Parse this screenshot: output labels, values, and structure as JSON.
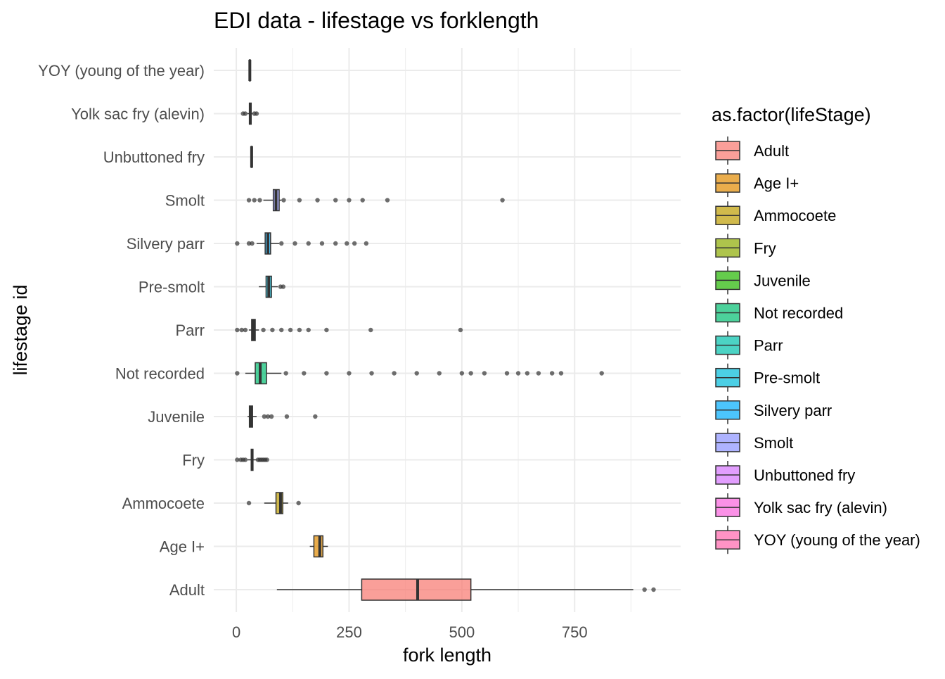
{
  "chart_data": {
    "type": "boxplot",
    "orientation": "horizontal",
    "title": "EDI data - lifestage vs forklength",
    "xlabel": "fork length",
    "ylabel": "lifestage id",
    "xlim": [
      -50,
      985
    ],
    "x_ticks": [
      0,
      250,
      500,
      750
    ],
    "grid": true,
    "legend": {
      "title": "as.factor(lifeStage)",
      "position": "right",
      "entries": [
        {
          "label": "Adult",
          "color": "#F8766D"
        },
        {
          "label": "Age I+",
          "color": "#E18A00"
        },
        {
          "label": "Ammocoete",
          "color": "#BE9C00"
        },
        {
          "label": "Fry",
          "color": "#8CAB00"
        },
        {
          "label": "Juvenile",
          "color": "#24B700"
        },
        {
          "label": "Not recorded",
          "color": "#00BE70"
        },
        {
          "label": "Parr",
          "color": "#00C1AB"
        },
        {
          "label": "Pre-smolt",
          "color": "#00BBDA"
        },
        {
          "label": "Silvery parr",
          "color": "#00ACFC"
        },
        {
          "label": "Smolt",
          "color": "#8B93FF"
        },
        {
          "label": "Unbuttoned fry",
          "color": "#D575FE"
        },
        {
          "label": "Yolk sac fry (alevin)",
          "color": "#F962DD"
        },
        {
          "label": "YOY (young of the year)",
          "color": "#FF65AC"
        }
      ]
    },
    "categories": [
      "Adult",
      "Age I+",
      "Ammocoete",
      "Fry",
      "Juvenile",
      "Not recorded",
      "Parr",
      "Pre-smolt",
      "Silvery parr",
      "Smolt",
      "Unbuttoned fry",
      "Yolk sac fry (alevin)",
      "YOY (young of the year)"
    ],
    "boxes": [
      {
        "category": "Adult",
        "whisker_low": 90,
        "q1": 278,
        "median": 402,
        "q3": 520,
        "whisker_high": 880,
        "outliers": [
          905,
          925
        ]
      },
      {
        "category": "Age I+",
        "whisker_low": 163,
        "q1": 172,
        "median": 185,
        "q3": 192,
        "whisker_high": 203,
        "outliers": []
      },
      {
        "category": "Ammocoete",
        "whisker_low": 62,
        "q1": 88,
        "median": 98,
        "q3": 103,
        "whisker_high": 115,
        "outliers": [
          28,
          138
        ]
      },
      {
        "category": "Fry",
        "whisker_low": 25,
        "q1": 33,
        "median": 35,
        "q3": 37,
        "whisker_high": 45,
        "outliers": [
          2,
          10,
          15,
          20,
          48,
          52,
          56,
          60,
          64,
          68
        ]
      },
      {
        "category": "Juvenile",
        "whisker_low": 25,
        "q1": 29,
        "median": 33,
        "q3": 36,
        "whisker_high": 45,
        "outliers": [
          62,
          70,
          78,
          112,
          175
        ]
      },
      {
        "category": "Not recorded",
        "whisker_low": 20,
        "q1": 42,
        "median": 53,
        "q3": 67,
        "whisker_high": 100,
        "outliers": [
          2,
          110,
          150,
          200,
          250,
          300,
          350,
          400,
          450,
          500,
          520,
          550,
          600,
          625,
          645,
          670,
          700,
          720,
          810
        ]
      },
      {
        "category": "Parr",
        "whisker_low": 28,
        "q1": 34,
        "median": 38,
        "q3": 42,
        "whisker_high": 50,
        "outliers": [
          2,
          12,
          20,
          60,
          80,
          100,
          120,
          140,
          160,
          200,
          298,
          497
        ]
      },
      {
        "category": "Pre-smolt",
        "whisker_low": 50,
        "q1": 66,
        "median": 72,
        "q3": 78,
        "whisker_high": 92,
        "outliers": [
          98,
          104
        ]
      },
      {
        "category": "Silvery parr",
        "whisker_low": 45,
        "q1": 64,
        "median": 70,
        "q3": 76,
        "whisker_high": 95,
        "outliers": [
          2,
          28,
          35,
          100,
          130,
          160,
          190,
          220,
          245,
          262,
          288
        ]
      },
      {
        "category": "Smolt",
        "whisker_low": 60,
        "q1": 82,
        "median": 88,
        "q3": 95,
        "whisker_high": 100,
        "outliers": [
          28,
          40,
          52,
          105,
          140,
          180,
          220,
          250,
          280,
          335,
          590
        ]
      },
      {
        "category": "Unbuttoned fry",
        "whisker_low": 32,
        "q1": 33,
        "median": 34,
        "q3": 35,
        "whisker_high": 36,
        "outliers": []
      },
      {
        "category": "Yolk sac fry (alevin)",
        "whisker_low": 25,
        "q1": 29,
        "median": 31,
        "q3": 33,
        "whisker_high": 36,
        "outliers": [
          15,
          20,
          40,
          45
        ]
      },
      {
        "category": "YOY (young of the year)",
        "whisker_low": 28,
        "q1": 29,
        "median": 30,
        "q3": 31,
        "whisker_high": 32,
        "outliers": []
      }
    ]
  }
}
